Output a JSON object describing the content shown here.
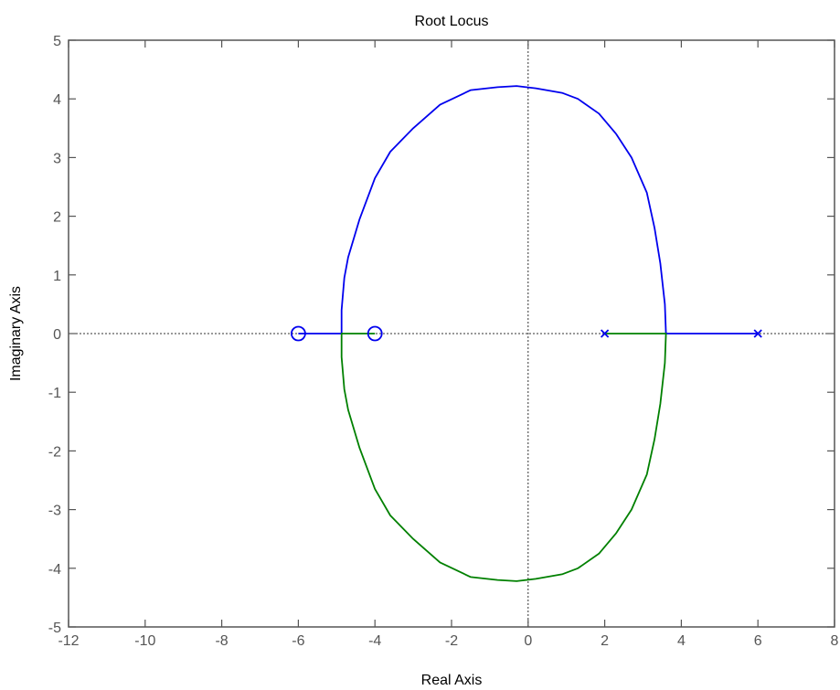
{
  "chart_data": {
    "type": "line",
    "title": "Root Locus",
    "xlabel": "Real Axis",
    "ylabel": "Imaginary Axis",
    "xlim": [
      -12,
      8
    ],
    "ylim": [
      -5,
      5
    ],
    "xticks": [
      -12,
      -10,
      -8,
      -6,
      -4,
      -2,
      0,
      2,
      4,
      6,
      8
    ],
    "yticks": [
      -5,
      -4,
      -3,
      -2,
      -1,
      0,
      1,
      2,
      3,
      4,
      5
    ],
    "xtick_labels": [
      "-12",
      "-10",
      "-8",
      "-6",
      "-4",
      "-2",
      "0",
      "2",
      "4",
      "6",
      "8"
    ],
    "ytick_labels": [
      "-5",
      "-4",
      "-3",
      "-2",
      "-1",
      "0",
      "1",
      "2",
      "3",
      "4",
      "5"
    ],
    "grid": false,
    "colors": {
      "branch1": "#0000ee",
      "branch2": "#008000",
      "axis": "#555555",
      "reference": "#333333"
    },
    "zeros": [
      {
        "x": -6,
        "y": 0
      },
      {
        "x": -4,
        "y": 0
      }
    ],
    "poles": [
      {
        "x": 2,
        "y": 0
      },
      {
        "x": 6,
        "y": 0
      }
    ],
    "series": [
      {
        "color": "#0000ee",
        "x": [
          6,
          3.6,
          3.57,
          3.45,
          3.3,
          3.1,
          2.7,
          2.3,
          1.85,
          1.3,
          0.9,
          0.2,
          -0.3,
          -0.8,
          -1.5,
          -2.3,
          -3.0,
          -3.6,
          -4.0,
          -4.4,
          -4.7,
          -4.8,
          -4.87,
          -4.87,
          -6
        ],
        "y": [
          0,
          0,
          0.5,
          1.2,
          1.8,
          2.4,
          3.0,
          3.4,
          3.75,
          4.0,
          4.1,
          4.18,
          4.22,
          4.2,
          4.15,
          3.9,
          3.5,
          3.1,
          2.65,
          1.95,
          1.3,
          0.95,
          0.4,
          0,
          0
        ]
      },
      {
        "color": "#008000",
        "x": [
          2,
          3.6,
          3.57,
          3.45,
          3.3,
          3.1,
          2.7,
          2.3,
          1.85,
          1.3,
          0.9,
          0.2,
          -0.3,
          -0.8,
          -1.5,
          -2.3,
          -3.0,
          -3.6,
          -4.0,
          -4.4,
          -4.7,
          -4.8,
          -4.87,
          -4.87,
          -4
        ],
        "y": [
          0,
          0,
          -0.5,
          -1.2,
          -1.8,
          -2.4,
          -3.0,
          -3.4,
          -3.75,
          -4.0,
          -4.1,
          -4.18,
          -4.22,
          -4.2,
          -4.15,
          -3.9,
          -3.5,
          -3.1,
          -2.65,
          -1.95,
          -1.3,
          -0.95,
          -0.4,
          0,
          0
        ]
      }
    ]
  }
}
